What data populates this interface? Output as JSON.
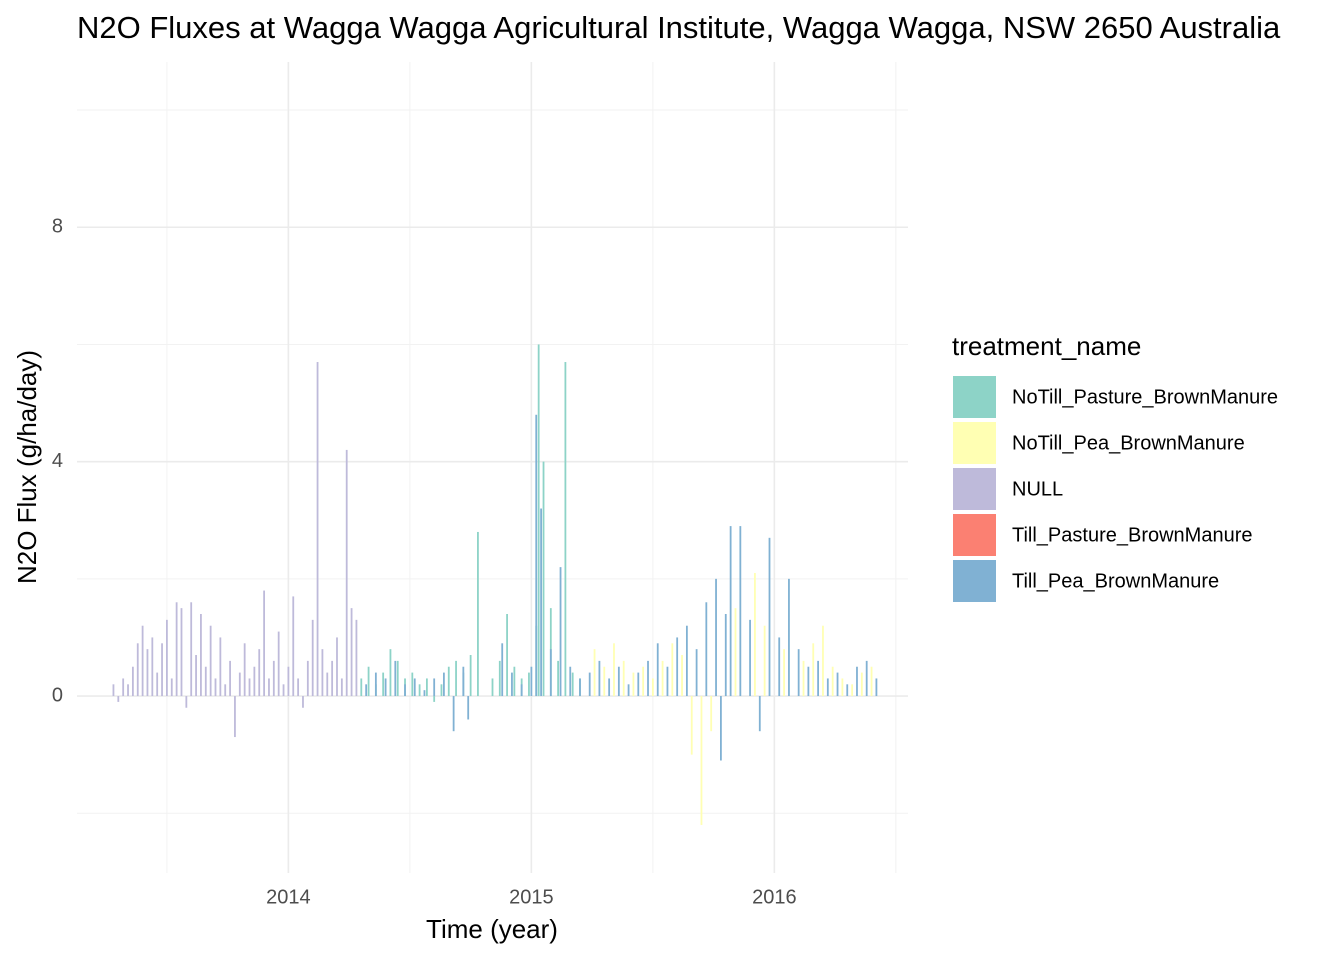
{
  "chart_data": {
    "type": "bar",
    "title": "N2O Fluxes at Wagga Wagga Agricultural Institute, Wagga Wagga, NSW 2650 Australia",
    "x_label": "Time (year)",
    "y_label": "N2O Flux (g/ha/day)",
    "legend_title": "treatment_name",
    "legend_position": "right",
    "xlim": [
      2013.13,
      2016.55
    ],
    "xticks": [
      2014,
      2015,
      2016
    ],
    "x_minor_ticks": [
      2013.5,
      2014.5,
      2015.5,
      2016.5
    ],
    "ylim": [
      -3.02,
      10.82
    ],
    "yticks": [
      0,
      4,
      8
    ],
    "y_minor_ticks": [
      -2,
      2,
      6,
      10
    ],
    "grid": true,
    "series": [
      {
        "name": "NoTill_Pasture_BrownManure",
        "color": "#8DD3C7",
        "x": [
          2014.3,
          2014.33,
          2014.36,
          2014.39,
          2014.42,
          2014.45,
          2014.48,
          2014.51,
          2014.54,
          2014.57,
          2014.6,
          2014.63,
          2014.66,
          2014.69,
          2014.72,
          2014.75,
          2014.78,
          2014.84,
          2014.87,
          2014.9,
          2014.93,
          2014.96,
          2014.99,
          2015.02,
          2015.03,
          2015.05,
          2015.08,
          2015.11,
          2015.14,
          2015.17,
          2015.2
        ],
        "values": [
          0.3,
          0.5,
          0.2,
          0.4,
          0.8,
          0.6,
          0.3,
          0.4,
          0.2,
          0.3,
          -0.1,
          0.2,
          0.5,
          0.6,
          0.4,
          0.7,
          2.8,
          0.3,
          0.6,
          1.4,
          0.5,
          0.3,
          0.4,
          1.2,
          6.0,
          4.0,
          1.5,
          0.6,
          5.7,
          0.4,
          0.3
        ]
      },
      {
        "name": "NoTill_Pea_BrownManure",
        "color": "#FFFFB3",
        "x": [
          2015.26,
          2015.3,
          2015.34,
          2015.38,
          2015.42,
          2015.46,
          2015.5,
          2015.54,
          2015.58,
          2015.62,
          2015.66,
          2015.7,
          2015.74,
          2015.84,
          2015.92,
          2015.96,
          2016.04,
          2016.12,
          2016.16,
          2016.2,
          2016.24,
          2016.28,
          2016.32,
          2016.36,
          2016.4
        ],
        "values": [
          0.8,
          0.5,
          0.9,
          0.6,
          0.4,
          0.5,
          0.3,
          0.6,
          0.9,
          0.7,
          -1.0,
          -2.2,
          -0.6,
          1.5,
          2.1,
          1.2,
          0.8,
          0.6,
          0.9,
          1.2,
          0.5,
          0.3,
          0.2,
          0.4,
          0.5
        ]
      },
      {
        "name": "NULL",
        "color": "#BEBADA",
        "x": [
          2013.28,
          2013.3,
          2013.32,
          2013.34,
          2013.36,
          2013.38,
          2013.4,
          2013.42,
          2013.44,
          2013.46,
          2013.48,
          2013.5,
          2013.52,
          2013.54,
          2013.56,
          2013.58,
          2013.6,
          2013.62,
          2013.64,
          2013.66,
          2013.68,
          2013.7,
          2013.72,
          2013.74,
          2013.76,
          2013.78,
          2013.8,
          2013.82,
          2013.84,
          2013.86,
          2013.88,
          2013.9,
          2013.92,
          2013.94,
          2013.96,
          2013.98,
          2014.0,
          2014.02,
          2014.04,
          2014.06,
          2014.08,
          2014.1,
          2014.12,
          2014.14,
          2014.16,
          2014.18,
          2014.2,
          2014.22,
          2014.24,
          2014.26,
          2014.28
        ],
        "values": [
          0.2,
          -0.1,
          0.3,
          0.2,
          0.5,
          0.9,
          1.2,
          0.8,
          1.0,
          0.4,
          0.9,
          1.3,
          0.3,
          1.6,
          1.5,
          -0.2,
          1.6,
          0.7,
          1.4,
          0.5,
          1.2,
          0.3,
          1.0,
          0.2,
          0.6,
          -0.7,
          0.4,
          0.9,
          0.3,
          0.5,
          0.8,
          1.8,
          0.3,
          0.6,
          1.1,
          0.2,
          0.5,
          1.7,
          0.3,
          -0.2,
          0.6,
          1.3,
          5.7,
          0.8,
          0.4,
          0.6,
          1.0,
          0.3,
          4.2,
          1.5,
          1.3
        ]
      },
      {
        "name": "Till_Pasture_BrownManure",
        "color": "#FB8072",
        "x": [],
        "values": []
      },
      {
        "name": "Till_Pea_BrownManure",
        "color": "#80B1D3",
        "x": [
          2014.32,
          2014.36,
          2014.4,
          2014.44,
          2014.48,
          2014.52,
          2014.56,
          2014.6,
          2014.64,
          2014.68,
          2014.72,
          2014.74,
          2014.88,
          2014.92,
          2014.96,
          2015.0,
          2015.02,
          2015.04,
          2015.08,
          2015.12,
          2015.16,
          2015.2,
          2015.24,
          2015.28,
          2015.32,
          2015.36,
          2015.4,
          2015.44,
          2015.48,
          2015.52,
          2015.56,
          2015.6,
          2015.64,
          2015.68,
          2015.72,
          2015.76,
          2015.78,
          2015.8,
          2015.82,
          2015.86,
          2015.9,
          2015.94,
          2015.98,
          2016.02,
          2016.06,
          2016.1,
          2016.14,
          2016.18,
          2016.22,
          2016.26,
          2016.3,
          2016.34,
          2016.38,
          2016.42
        ],
        "values": [
          0.2,
          0.4,
          0.3,
          0.6,
          0.2,
          0.3,
          0.1,
          0.3,
          0.4,
          -0.6,
          0.5,
          -0.4,
          0.9,
          0.4,
          0.2,
          0.5,
          4.8,
          3.2,
          0.8,
          2.2,
          0.5,
          0.3,
          0.4,
          0.6,
          0.3,
          0.5,
          0.2,
          0.4,
          0.6,
          0.9,
          0.5,
          1.0,
          1.2,
          0.8,
          1.6,
          2.0,
          -1.1,
          1.4,
          2.9,
          2.9,
          1.3,
          -0.6,
          2.7,
          1.0,
          2.0,
          0.8,
          0.5,
          0.6,
          0.3,
          0.4,
          0.2,
          0.5,
          0.6,
          0.3
        ]
      }
    ]
  }
}
